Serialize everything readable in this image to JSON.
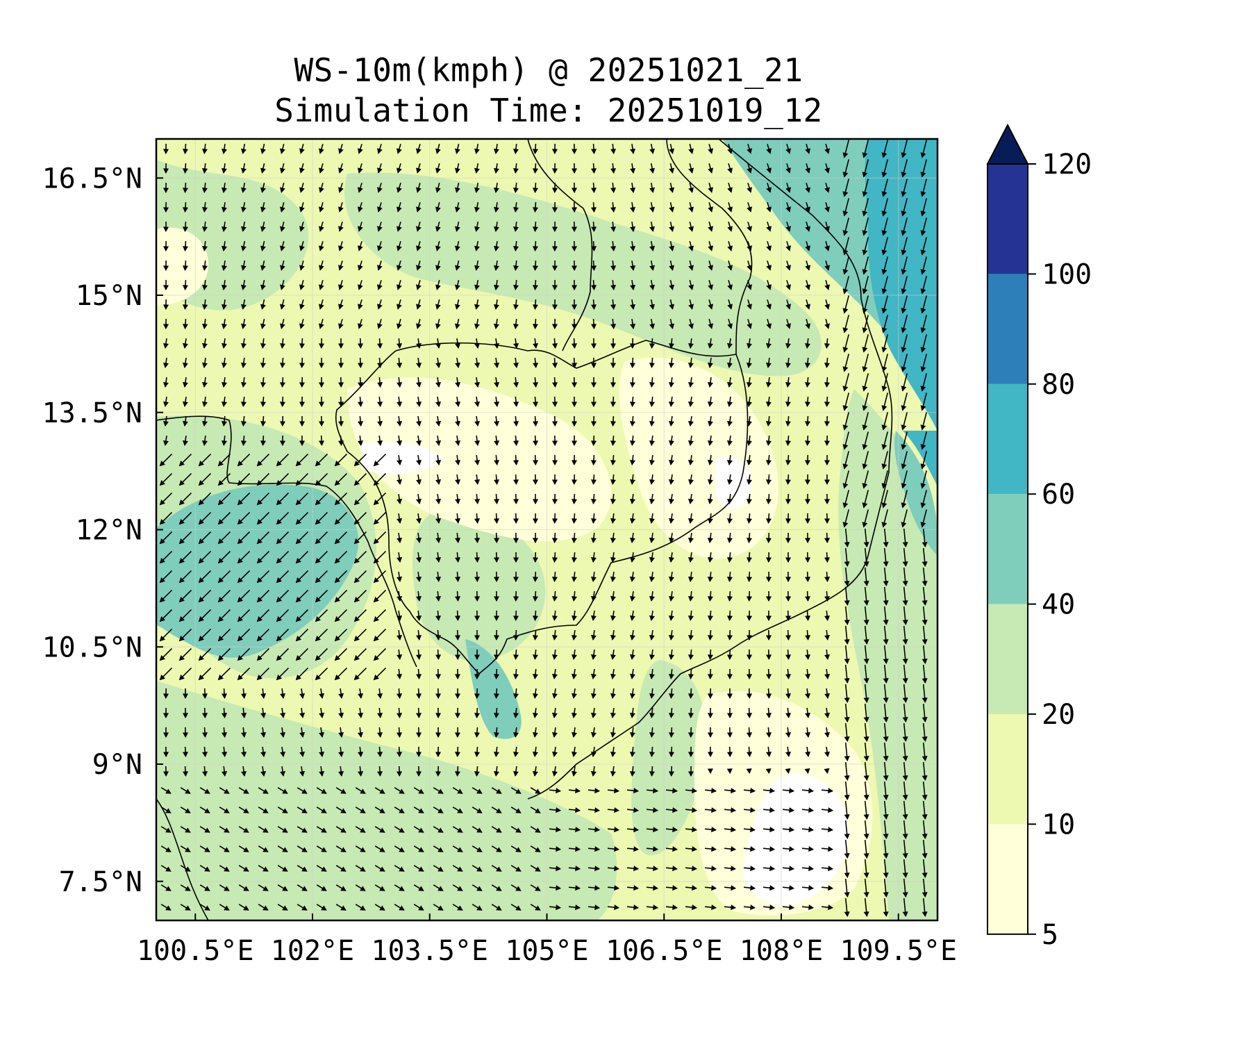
{
  "title": {
    "line1": "WS-10m(kmph) @ 20251021_21",
    "line2": "Simulation Time: 20251019_12"
  },
  "map": {
    "lon_range": [
      100.0,
      110.0
    ],
    "lat_range": [
      7.0,
      17.0
    ],
    "x_ticks": [
      {
        "value": 100.5,
        "label": "100.5°E"
      },
      {
        "value": 102.0,
        "label": "102°E"
      },
      {
        "value": 103.5,
        "label": "103.5°E"
      },
      {
        "value": 105.0,
        "label": "105°E"
      },
      {
        "value": 106.5,
        "label": "106.5°E"
      },
      {
        "value": 108.0,
        "label": "108°E"
      },
      {
        "value": 109.5,
        "label": "109.5°E"
      }
    ],
    "y_ticks": [
      {
        "value": 16.5,
        "label": "16.5°N"
      },
      {
        "value": 15.0,
        "label": "15°N"
      },
      {
        "value": 13.5,
        "label": "13.5°N"
      },
      {
        "value": 12.0,
        "label": "12°N"
      },
      {
        "value": 10.5,
        "label": "10.5°N"
      },
      {
        "value": 9.0,
        "label": "9°N"
      },
      {
        "value": 7.5,
        "label": "7.5°N"
      }
    ],
    "grid": true,
    "field": "wind speed at 10 m (filled contours) with wind direction arrows"
  },
  "colorbar": {
    "levels": [
      {
        "value": 5,
        "label": "5"
      },
      {
        "value": 10,
        "label": "10"
      },
      {
        "value": 20,
        "label": "20"
      },
      {
        "value": 40,
        "label": "40"
      },
      {
        "value": 60,
        "label": "60"
      },
      {
        "value": 80,
        "label": "80"
      },
      {
        "value": 100,
        "label": "100"
      },
      {
        "value": 120,
        "label": "120"
      }
    ],
    "colors": [
      "#ffffd9",
      "#edf8b1",
      "#c7e9b4",
      "#7fcdbb",
      "#41b6c4",
      "#2c7fb8",
      "#253494"
    ],
    "extend_color": "#081d58",
    "extend": "max"
  }
}
